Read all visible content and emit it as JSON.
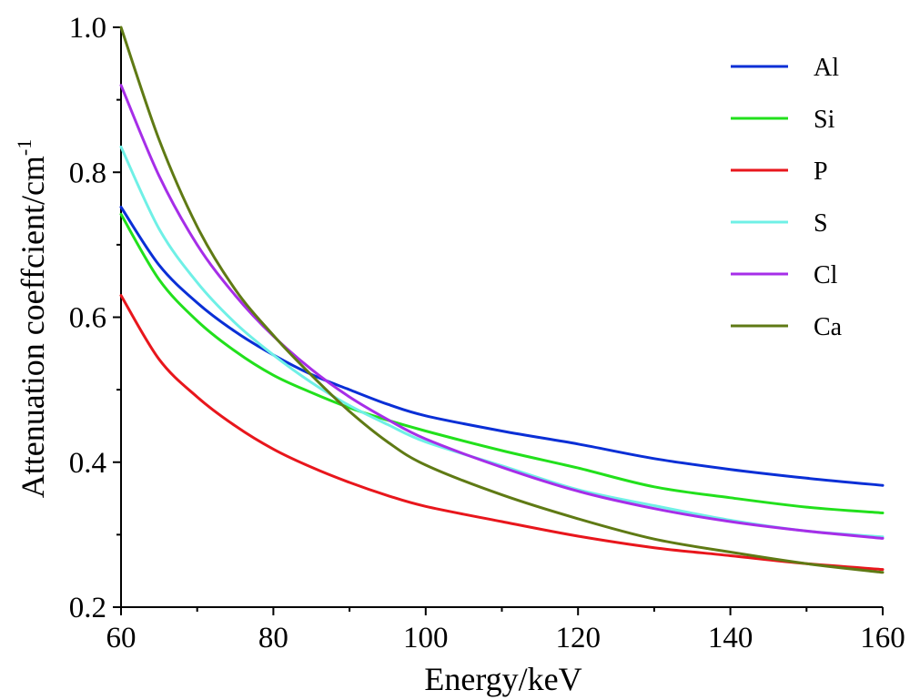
{
  "chart_data": {
    "type": "line",
    "xlabel": "Energy/keV",
    "ylabel": "Attenuation coeffcient/cm",
    "ylabel_superscript": "-1",
    "xlim": [
      60,
      160
    ],
    "ylim": [
      0.2,
      1.0
    ],
    "x_ticks": [
      "60",
      "80",
      "100",
      "120",
      "140",
      "160"
    ],
    "y_ticks": [
      "0.2",
      "0.4",
      "0.6",
      "0.8",
      "1.0"
    ],
    "grid": false,
    "legend_position": "top-right",
    "x": [
      60,
      65,
      70,
      75,
      80,
      85,
      90,
      95,
      100,
      110,
      120,
      130,
      140,
      150,
      160
    ],
    "series": [
      {
        "name": "Al",
        "color": "#0a2fd6",
        "values": [
          0.752,
          0.672,
          0.62,
          0.58,
          0.548,
          0.521,
          0.5,
          0.48,
          0.464,
          0.443,
          0.425,
          0.405,
          0.39,
          0.378,
          0.368
        ]
      },
      {
        "name": "Si",
        "color": "#22e01c",
        "values": [
          0.742,
          0.652,
          0.595,
          0.553,
          0.52,
          0.496,
          0.475,
          0.458,
          0.443,
          0.416,
          0.392,
          0.366,
          0.351,
          0.338,
          0.33
        ]
      },
      {
        "name": "P",
        "color": "#e8161c",
        "values": [
          0.63,
          0.542,
          0.49,
          0.45,
          0.418,
          0.393,
          0.372,
          0.354,
          0.339,
          0.318,
          0.298,
          0.282,
          0.271,
          0.26,
          0.252
        ]
      },
      {
        "name": "S",
        "color": "#6ff0e6",
        "values": [
          0.835,
          0.722,
          0.648,
          0.592,
          0.548,
          0.51,
          0.478,
          0.452,
          0.428,
          0.395,
          0.362,
          0.34,
          0.32,
          0.305,
          0.297
        ]
      },
      {
        "name": "Cl",
        "color": "#a62ee8",
        "values": [
          0.92,
          0.795,
          0.7,
          0.63,
          0.574,
          0.528,
          0.49,
          0.459,
          0.432,
          0.393,
          0.36,
          0.336,
          0.318,
          0.305,
          0.295
        ]
      },
      {
        "name": "Ca",
        "color": "#5f7a14",
        "values": [
          1.0,
          0.845,
          0.725,
          0.638,
          0.575,
          0.52,
          0.47,
          0.428,
          0.396,
          0.355,
          0.322,
          0.294,
          0.276,
          0.26,
          0.248
        ]
      }
    ]
  }
}
